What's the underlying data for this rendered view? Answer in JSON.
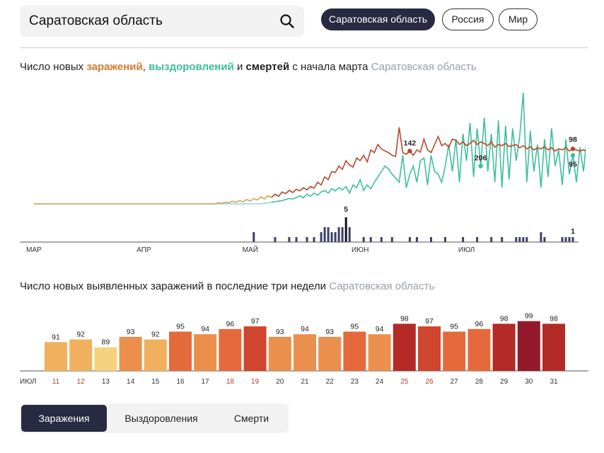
{
  "search": {
    "value": "Саратовская область"
  },
  "region_buttons": [
    {
      "label": "Саратовская область",
      "active": true
    },
    {
      "label": "Россия",
      "active": false
    },
    {
      "label": "Мир",
      "active": false
    }
  ],
  "line_section": {
    "prefix": "Число новых ",
    "infections": "заражений",
    "comma": ", ",
    "recoveries": "выздоровлений",
    "and": " и ",
    "deaths": "смертей",
    "suffix": " с начала марта",
    "region": "Саратовская область"
  },
  "bar_section": {
    "title": "Число новых выявленных заражений в последние три недели",
    "region": "Саратовская область"
  },
  "tabs": [
    {
      "label": "Заражения",
      "active": true
    },
    {
      "label": "Выздоровления",
      "active": false
    },
    {
      "label": "Смерти",
      "active": false
    }
  ],
  "colors": {
    "infections_early": "#d9a055",
    "infections": "#b8472c",
    "recoveries_early": "#8fd6e0",
    "recoveries": "#3dbf9c",
    "deaths": "#3b3f66",
    "weekend_label": "#c0392b"
  },
  "chart_data": [
    {
      "type": "line",
      "x_range": [
        "2020-03-01",
        "2020-07-31"
      ],
      "x_tick_labels": [
        "МАР",
        "АПР",
        "МАЙ",
        "ИЮН",
        "ИЮЛ"
      ],
      "x_ticks": [
        "2020-03-01",
        "2020-04-01",
        "2020-05-01",
        "2020-06-01",
        "2020-07-01"
      ],
      "ylim": [
        0,
        210
      ],
      "series": [
        {
          "name": "заражений",
          "start": "2020-03-01",
          "values": [
            0,
            0,
            0,
            0,
            0,
            0,
            0,
            0,
            0,
            0,
            0,
            0,
            0,
            0,
            0,
            0,
            0,
            0,
            0,
            0,
            0,
            0,
            0,
            0,
            0,
            0,
            0,
            0,
            0,
            0,
            0,
            0,
            0,
            0,
            0,
            0,
            0,
            0,
            0,
            0,
            0,
            0,
            0,
            0,
            0,
            0,
            0,
            0,
            0,
            0,
            0,
            0,
            2,
            1,
            3,
            2,
            5,
            3,
            6,
            4,
            8,
            5,
            10,
            7,
            13,
            9,
            15,
            12,
            18,
            14,
            22,
            19,
            25,
            21,
            27,
            24,
            30,
            26,
            32,
            29,
            40,
            35,
            50,
            45,
            60,
            58,
            70,
            64,
            80,
            72,
            68,
            85,
            80,
            90,
            78,
            100,
            95,
            110,
            102,
            98,
            95,
            90,
            88,
            142,
            95,
            92,
            98,
            90,
            100,
            96,
            120,
            100,
            95,
            110,
            125,
            108,
            112,
            105,
            120,
            118,
            110,
            115,
            108,
            112,
            118,
            110,
            115,
            112,
            108,
            115,
            105,
            110,
            108,
            112,
            106,
            108,
            110,
            104,
            108,
            102,
            106,
            100,
            104,
            102,
            106,
            100,
            104,
            98,
            102,
            100,
            104,
            98,
            102,
            100,
            98,
            100,
            96,
            98,
            100,
            98,
            96,
            98,
            100,
            98,
            98
          ]
        },
        {
          "name": "выздоровлений",
          "start": "2020-03-01",
          "values": [
            0,
            0,
            0,
            0,
            0,
            0,
            0,
            0,
            0,
            0,
            0,
            0,
            0,
            0,
            0,
            0,
            0,
            0,
            0,
            0,
            0,
            0,
            0,
            0,
            0,
            0,
            0,
            0,
            0,
            0,
            0,
            0,
            0,
            0,
            0,
            0,
            0,
            0,
            0,
            0,
            0,
            0,
            0,
            0,
            0,
            0,
            0,
            0,
            0,
            0,
            0,
            0,
            0,
            0,
            0,
            0,
            0,
            0,
            0,
            0,
            0,
            0,
            0,
            0,
            0,
            1,
            2,
            3,
            4,
            5,
            6,
            8,
            10,
            9,
            12,
            15,
            11,
            18,
            14,
            20,
            16,
            22,
            25,
            20,
            28,
            24,
            30,
            26,
            32,
            20,
            35,
            30,
            45,
            25,
            35,
            28,
            40,
            50,
            60,
            70,
            65,
            55,
            48,
            40,
            90,
            30,
            55,
            70,
            40,
            80,
            85,
            35,
            90,
            60,
            55,
            40,
            70,
            110,
            60,
            120,
            40,
            130,
            80,
            150,
            50,
            140,
            70,
            160,
            60,
            130,
            40,
            155,
            30,
            145,
            45,
            140,
            80,
            125,
            206,
            40,
            135,
            60,
            110,
            30,
            120,
            50,
            140,
            70,
            100,
            35,
            120,
            55,
            90,
            40,
            105,
            60,
            130,
            45,
            95,
            60,
            80,
            110,
            70,
            105,
            95
          ]
        },
        {
          "name": "смертей",
          "start": "2020-03-01",
          "type": "bar",
          "values": [
            0,
            0,
            0,
            0,
            0,
            0,
            0,
            0,
            0,
            0,
            0,
            0,
            0,
            0,
            0,
            0,
            0,
            0,
            0,
            0,
            0,
            0,
            0,
            0,
            0,
            0,
            0,
            0,
            0,
            0,
            0,
            0,
            0,
            0,
            0,
            0,
            0,
            0,
            0,
            0,
            0,
            0,
            0,
            0,
            0,
            0,
            0,
            0,
            0,
            0,
            0,
            0,
            0,
            0,
            0,
            0,
            0,
            0,
            0,
            0,
            0,
            0,
            0,
            0,
            0,
            0,
            0,
            0,
            0,
            0,
            0,
            0,
            0,
            0,
            0,
            0,
            0,
            0,
            0,
            0,
            0,
            0,
            0,
            0,
            0,
            0,
            0,
            0,
            0,
            0,
            0,
            0,
            0,
            0,
            0,
            0,
            0,
            0,
            0,
            0,
            0,
            0,
            0,
            0,
            0,
            0,
            0,
            0,
            0,
            0,
            0,
            0,
            0,
            0,
            0,
            0,
            0,
            0,
            0,
            0,
            0,
            0,
            0,
            0,
            0,
            0,
            0,
            0,
            0,
            0,
            0,
            0,
            0,
            0,
            0,
            0,
            0,
            0,
            0,
            0,
            0,
            0,
            0,
            0,
            0,
            0,
            0,
            0,
            0,
            0,
            0,
            0,
            0,
            0,
            0,
            0,
            0,
            0,
            0,
            0,
            0,
            0,
            0,
            0,
            0
          ]
        }
      ],
      "death_bars": [
        {
          "date": "2020-05-02",
          "value": 2
        },
        {
          "date": "2020-05-08",
          "value": 1
        },
        {
          "date": "2020-05-12",
          "value": 1
        },
        {
          "date": "2020-05-14",
          "value": 1
        },
        {
          "date": "2020-05-17",
          "value": 1
        },
        {
          "date": "2020-05-19",
          "value": 1
        },
        {
          "date": "2020-05-21",
          "value": 2
        },
        {
          "date": "2020-05-22",
          "value": 3
        },
        {
          "date": "2020-05-23",
          "value": 3
        },
        {
          "date": "2020-05-24",
          "value": 2
        },
        {
          "date": "2020-05-25",
          "value": 2
        },
        {
          "date": "2020-05-26",
          "value": 3
        },
        {
          "date": "2020-05-27",
          "value": 3
        },
        {
          "date": "2020-05-28",
          "value": 5
        },
        {
          "date": "2020-05-29",
          "value": 3
        },
        {
          "date": "2020-06-02",
          "value": 1
        },
        {
          "date": "2020-06-04",
          "value": 1
        },
        {
          "date": "2020-06-07",
          "value": 1
        },
        {
          "date": "2020-06-10",
          "value": 1
        },
        {
          "date": "2020-06-15",
          "value": 1
        },
        {
          "date": "2020-06-17",
          "value": 1
        },
        {
          "date": "2020-06-21",
          "value": 1
        },
        {
          "date": "2020-06-25",
          "value": 1
        },
        {
          "date": "2020-06-30",
          "value": 1
        },
        {
          "date": "2020-07-04",
          "value": 1
        },
        {
          "date": "2020-07-08",
          "value": 1
        },
        {
          "date": "2020-07-11",
          "value": 1
        },
        {
          "date": "2020-07-15",
          "value": 1
        },
        {
          "date": "2020-07-16",
          "value": 1
        },
        {
          "date": "2020-07-17",
          "value": 1
        },
        {
          "date": "2020-07-18",
          "value": 1
        },
        {
          "date": "2020-07-22",
          "value": 2
        },
        {
          "date": "2020-07-23",
          "value": 1
        },
        {
          "date": "2020-07-28",
          "value": 1
        },
        {
          "date": "2020-07-29",
          "value": 1
        },
        {
          "date": "2020-07-30",
          "value": 1
        },
        {
          "date": "2020-07-31",
          "value": 1
        }
      ],
      "annotations": [
        {
          "series": "заражений",
          "date": "2020-06-15",
          "label": "142"
        },
        {
          "series": "выздоровлений",
          "date": "2020-07-05",
          "label": "206"
        },
        {
          "series": "смертей",
          "date": "2020-05-28",
          "label": "5"
        },
        {
          "series": "заражений",
          "date": "2020-07-31",
          "label": "98"
        },
        {
          "series": "выздоровлений",
          "date": "2020-07-31",
          "label": "95"
        },
        {
          "series": "смертей",
          "date": "2020-07-31",
          "label": "1"
        }
      ]
    },
    {
      "type": "bar",
      "x_tick_prefix": "ИЮЛ",
      "categories": [
        "11",
        "12",
        "13",
        "14",
        "15",
        "16",
        "17",
        "18",
        "19",
        "20",
        "21",
        "22",
        "23",
        "24",
        "25",
        "26",
        "27",
        "28",
        "29",
        "30",
        "31"
      ],
      "values": [
        91,
        92,
        89,
        93,
        92,
        95,
        94,
        96,
        97,
        93,
        94,
        93,
        95,
        94,
        98,
        97,
        95,
        96,
        98,
        99,
        98
      ],
      "weekend_categories": [
        "11",
        "12",
        "18",
        "19",
        "25",
        "26"
      ],
      "ylim": [
        0,
        100
      ]
    }
  ]
}
